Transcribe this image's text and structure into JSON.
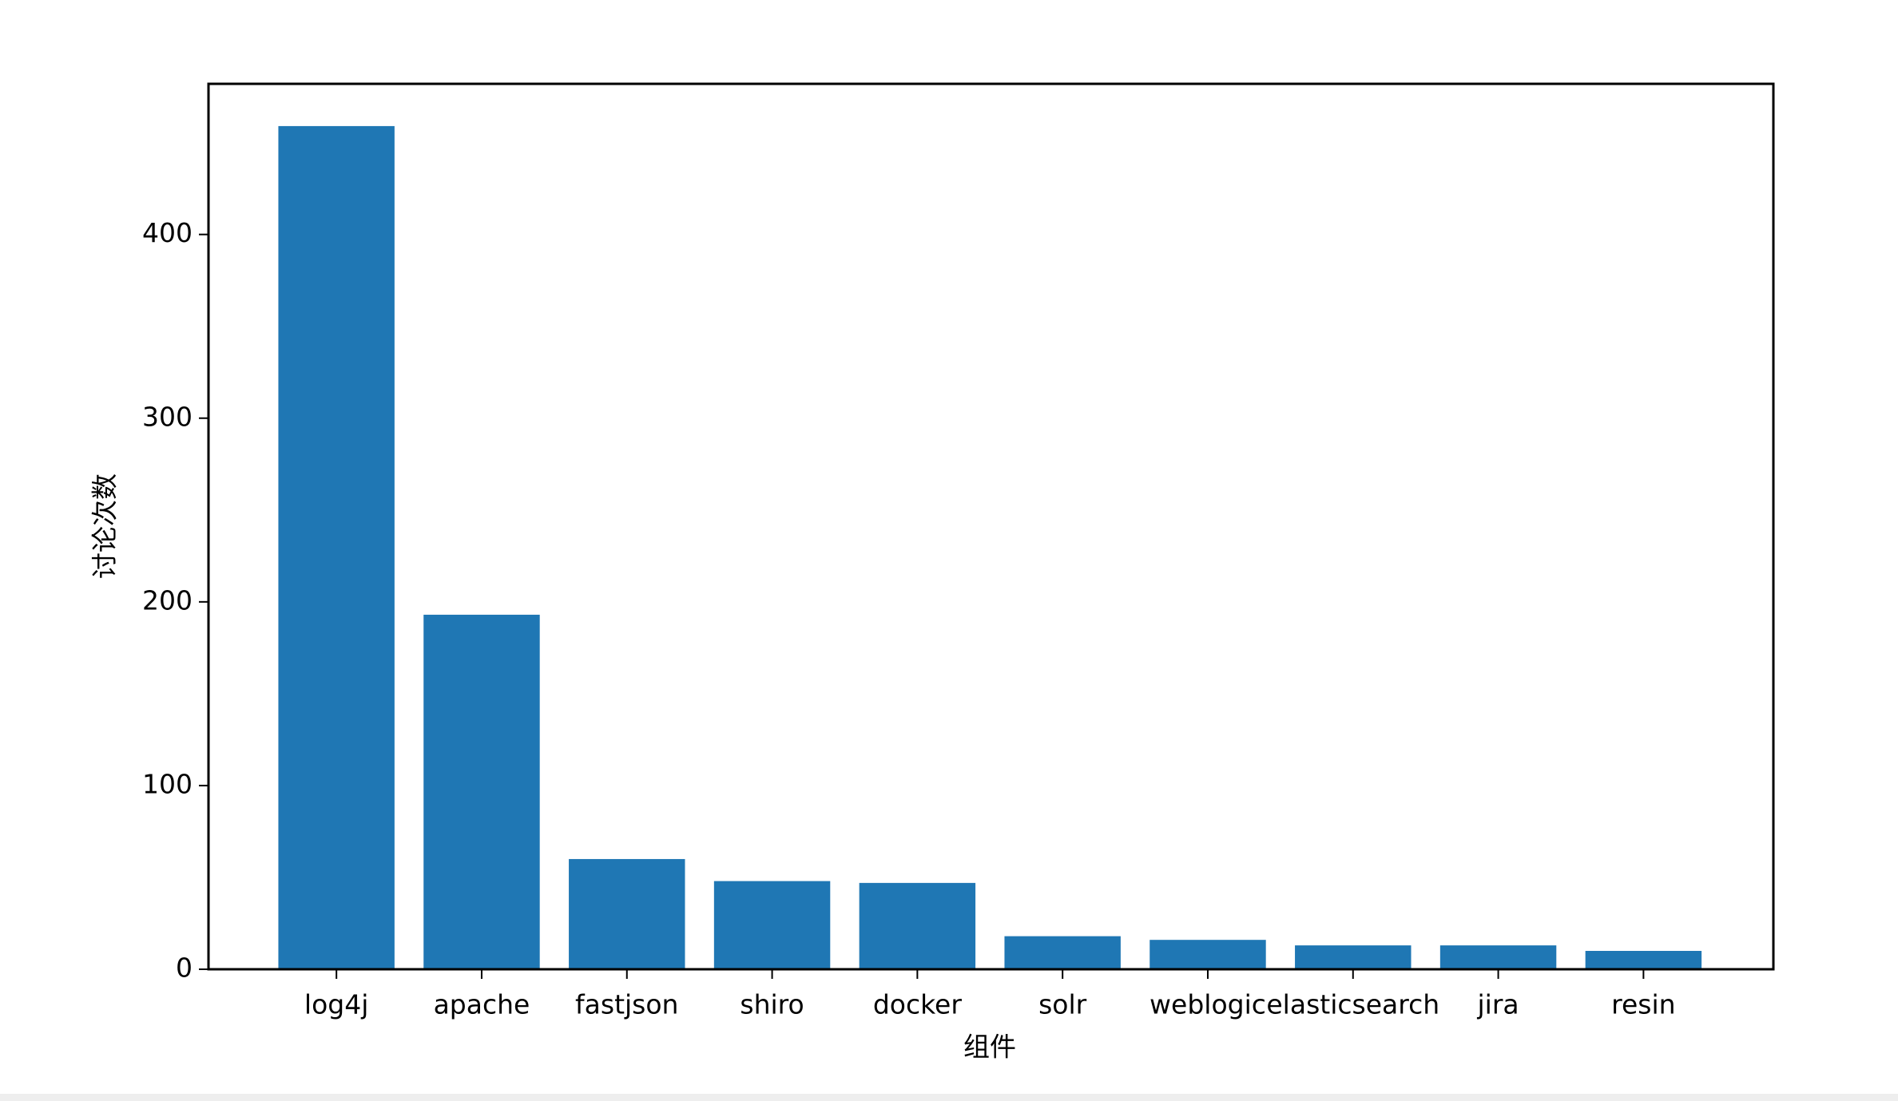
{
  "chart_data": {
    "type": "bar",
    "xlabel": "组件",
    "ylabel": "讨论次数",
    "categories": [
      "log4j",
      "apache",
      "fastjson",
      "shiro",
      "docker",
      "solr",
      "weblogic",
      "elasticsearch",
      "jira",
      "resin"
    ],
    "values": [
      459,
      193,
      60,
      48,
      47,
      18,
      16,
      13,
      13,
      10
    ],
    "color": "#1f77b4",
    "ylim": [
      0,
      482
    ],
    "yticks": [
      0,
      100,
      200,
      300,
      400
    ],
    "grid": false
  }
}
